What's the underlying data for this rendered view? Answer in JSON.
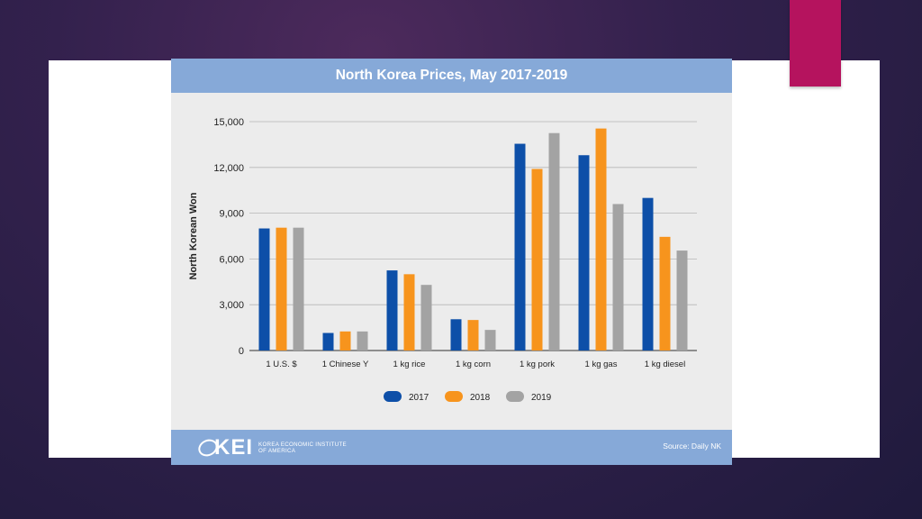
{
  "slide": {
    "panel_color": "#ffffff",
    "accent_color": "#b5135e"
  },
  "figure": {
    "title": "North Korea Prices, May 2017-2019",
    "source": "Source: Daily NK",
    "logo": {
      "mark": "KEI",
      "name_line1": "KOREA ECONOMIC INSTITUTE",
      "name_line2": "OF AMERICA"
    },
    "header_color": "#86a9d8"
  },
  "chart_data": {
    "type": "bar",
    "title": "North Korea Prices, May 2017-2019",
    "xlabel": "",
    "ylabel": "North Korean Won",
    "ylim": [
      0,
      15000
    ],
    "yticks": [
      0,
      3000,
      6000,
      9000,
      12000,
      15000
    ],
    "ytick_labels": [
      "0",
      "3,000",
      "6,000",
      "9,000",
      "12,000",
      "15,000"
    ],
    "grid": true,
    "legend_position": "bottom",
    "categories": [
      "1 U.S. $",
      "1 Chinese Y",
      "1 kg rice",
      "1 kg corn",
      "1 kg pork",
      "1 kg gas",
      "1 kg diesel"
    ],
    "series": [
      {
        "name": "2017",
        "color": "#0d4fa8",
        "values": [
          8000,
          1150,
          5250,
          2050,
          13550,
          12800,
          10000
        ]
      },
      {
        "name": "2018",
        "color": "#f7941d",
        "values": [
          8050,
          1250,
          5000,
          2000,
          11900,
          14550,
          7450
        ]
      },
      {
        "name": "2019",
        "color": "#a3a3a3",
        "values": [
          8050,
          1250,
          4300,
          1350,
          14250,
          9600,
          6550
        ]
      }
    ]
  }
}
